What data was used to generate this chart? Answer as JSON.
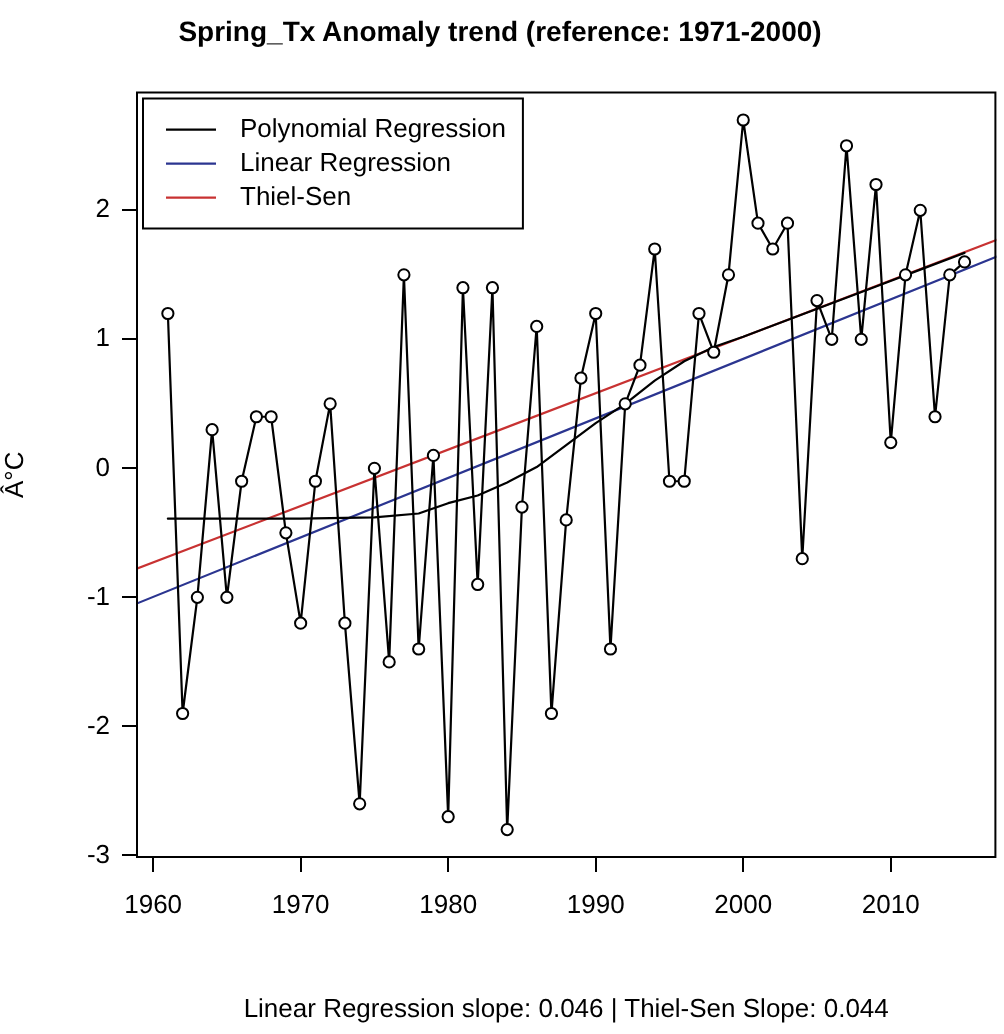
{
  "chart_data": {
    "type": "line",
    "title": "Spring_Tx Anomaly trend (reference: 1971-2000)",
    "ylabel": "Â°C",
    "annotations": [
      "Linear Regression slope: 0.046 | Thiel-Sen Slope: 0.044"
    ],
    "x": [
      1961,
      1962,
      1963,
      1964,
      1965,
      1966,
      1967,
      1968,
      1969,
      1970,
      1971,
      1972,
      1973,
      1974,
      1975,
      1976,
      1977,
      1978,
      1979,
      1980,
      1981,
      1982,
      1983,
      1984,
      1985,
      1986,
      1987,
      1988,
      1989,
      1990,
      1991,
      1992,
      1993,
      1994,
      1995,
      1996,
      1997,
      1998,
      1999,
      2000,
      2001,
      2002,
      2003,
      2004,
      2005,
      2006,
      2007,
      2008,
      2009,
      2010,
      2011,
      2012,
      2013,
      2014,
      2015
    ],
    "series": [
      {
        "color": "#000000",
        "values": [
          1.2,
          -1.9,
          -1.0,
          0.3,
          -1.0,
          -0.1,
          0.4,
          0.4,
          -0.5,
          -1.2,
          -0.1,
          0.5,
          -1.2,
          -2.6,
          0.0,
          -1.5,
          1.5,
          -1.4,
          0.1,
          -2.7,
          1.4,
          -0.9,
          1.4,
          -2.8,
          -0.3,
          1.1,
          -1.9,
          -0.4,
          0.7,
          1.2,
          -1.4,
          0.5,
          0.8,
          1.7,
          -0.1,
          -0.1,
          1.2,
          0.9,
          1.5,
          2.7,
          1.9,
          1.7,
          1.9,
          -0.7,
          1.3,
          1.0,
          2.5,
          1.0,
          2.2,
          0.2,
          1.5,
          2.0,
          0.4,
          1.5,
          1.6
        ]
      },
      {
        "name": "Polynomial Regression",
        "color": "#000000",
        "marker": "none",
        "x": [
          1961,
          1965,
          1970,
          1975,
          1978,
          1980,
          1982,
          1984,
          1986,
          1988,
          1990,
          1992,
          1994,
          1996,
          1998,
          2000,
          2003,
          2006,
          2009,
          2012,
          2015
        ],
        "values": [
          -0.39,
          -0.39,
          -0.39,
          -0.38,
          -0.35,
          -0.27,
          -0.21,
          -0.11,
          0.01,
          0.18,
          0.35,
          0.5,
          0.68,
          0.83,
          0.94,
          1.02,
          1.15,
          1.28,
          1.41,
          1.54,
          1.67
        ]
      },
      {
        "name": "Linear Regression",
        "color": "#2b3590",
        "marker": "none",
        "x": [
          1958.84,
          2017.16
        ],
        "values": [
          -1.05,
          1.64
        ]
      },
      {
        "name": "Thiel-Sen",
        "color": "#c83232",
        "marker": "none",
        "x": [
          1958.84,
          2017.16
        ],
        "values": [
          -0.78,
          1.77
        ]
      }
    ],
    "xlim": [
      1958.84,
      2017.16
    ],
    "ylim": [
      -3.02,
      2.92
    ],
    "xticks": [
      1960,
      1970,
      1980,
      1990,
      2000,
      2010
    ],
    "yticks": [
      -3,
      -2,
      -1,
      0,
      1,
      2
    ],
    "marker": "circle",
    "legend": "top left"
  }
}
